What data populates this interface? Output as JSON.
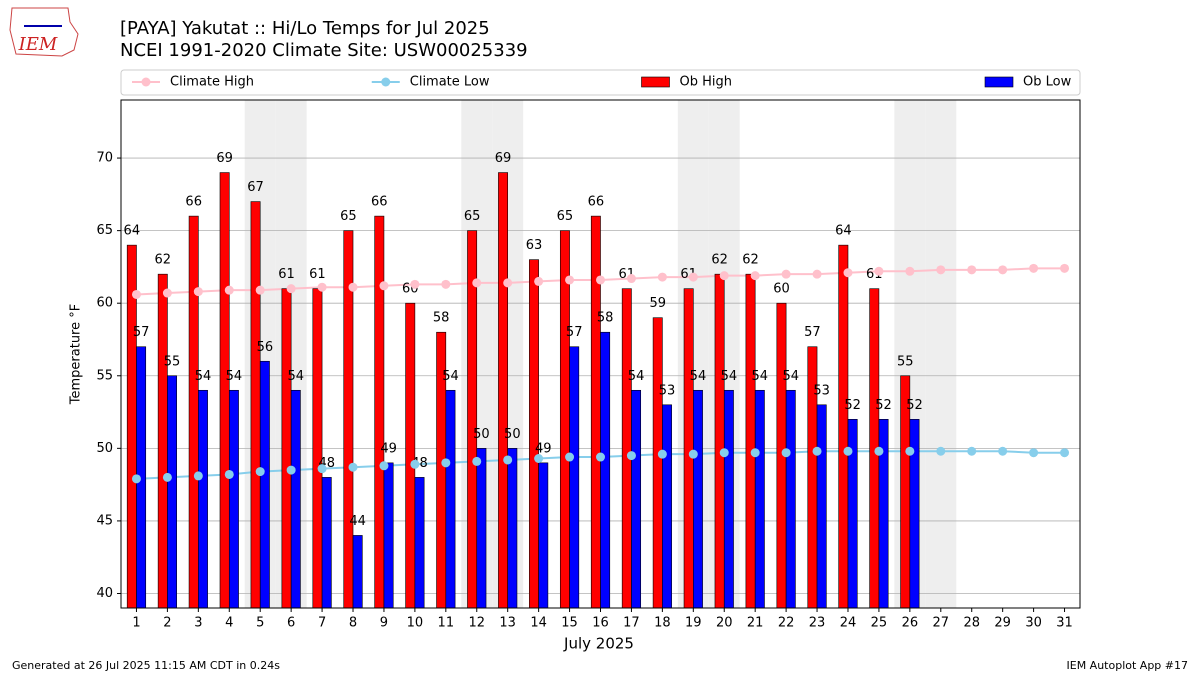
{
  "chart_data": {
    "type": "bar",
    "title": "[PAYA] Yakutat :: Hi/Lo Temps for Jul 2025",
    "subtitle": "NCEI 1991-2020 Climate Site: USW00025339",
    "logo": "IEM",
    "xlabel": "July 2025",
    "ylabel": "Temperature °F",
    "footer_left": "Generated at 26 Jul 2025 11:15 AM CDT in 0.24s",
    "footer_right": "IEM Autoplot App #17",
    "x": [
      1,
      2,
      3,
      4,
      5,
      6,
      7,
      8,
      9,
      10,
      11,
      12,
      13,
      14,
      15,
      16,
      17,
      18,
      19,
      20,
      21,
      22,
      23,
      24,
      25,
      26,
      27,
      28,
      29,
      30,
      31
    ],
    "xlim": [
      0.5,
      31.5
    ],
    "xticks": [
      1,
      2,
      3,
      4,
      5,
      6,
      7,
      8,
      9,
      10,
      11,
      12,
      13,
      14,
      15,
      16,
      17,
      18,
      19,
      20,
      21,
      22,
      23,
      24,
      25,
      26,
      27,
      28,
      29,
      30,
      31
    ],
    "ylim": [
      39,
      74
    ],
    "yticks": [
      40,
      45,
      50,
      55,
      60,
      65,
      70
    ],
    "grid": true,
    "weekends": [
      5,
      6,
      12,
      13,
      19,
      20,
      26,
      27
    ],
    "weekend_color": "#eeeeee",
    "series": [
      {
        "name": "Climate High",
        "type": "line",
        "color": "#ffc0cb",
        "values": [
          60.6,
          60.7,
          60.8,
          60.9,
          60.9,
          61.0,
          61.1,
          61.1,
          61.2,
          61.3,
          61.3,
          61.4,
          61.4,
          61.5,
          61.6,
          61.6,
          61.7,
          61.8,
          61.8,
          61.9,
          61.9,
          62.0,
          62.0,
          62.1,
          62.2,
          62.2,
          62.3,
          62.3,
          62.3,
          62.4,
          62.4
        ]
      },
      {
        "name": "Climate Low",
        "type": "line",
        "color": "#87ceeb",
        "values": [
          47.9,
          48.0,
          48.1,
          48.2,
          48.4,
          48.5,
          48.6,
          48.7,
          48.8,
          48.9,
          49.0,
          49.1,
          49.2,
          49.3,
          49.4,
          49.4,
          49.5,
          49.6,
          49.6,
          49.7,
          49.7,
          49.7,
          49.8,
          49.8,
          49.8,
          49.8,
          49.8,
          49.8,
          49.8,
          49.7,
          49.7
        ]
      },
      {
        "name": "Ob High",
        "type": "bar",
        "color": "#ff0000",
        "values": [
          64,
          62,
          66,
          69,
          67,
          61,
          61,
          65,
          66,
          60,
          58,
          65,
          69,
          63,
          65,
          66,
          61,
          59,
          61,
          62,
          62,
          60,
          57,
          64,
          61,
          55,
          null,
          null,
          null,
          null,
          null
        ]
      },
      {
        "name": "Ob Low",
        "type": "bar",
        "color": "#0000ff",
        "values": [
          57,
          55,
          54,
          54,
          56,
          54,
          48,
          44,
          49,
          48,
          54,
          50,
          50,
          49,
          57,
          58,
          54,
          53,
          54,
          54,
          54,
          54,
          53,
          52,
          52,
          52,
          null,
          null,
          null,
          null,
          null
        ]
      }
    ]
  }
}
